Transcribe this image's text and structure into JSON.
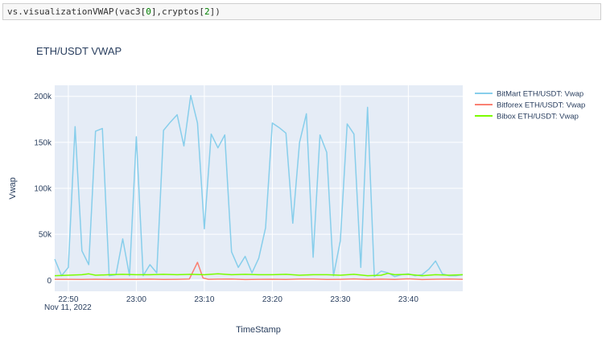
{
  "code_cell": {
    "prefix": "vs.visualizationVWAP(vac3[",
    "index1": "0",
    "middle": "],cryptos[",
    "index2": "2",
    "suffix": "])"
  },
  "chart_data": {
    "type": "line",
    "title": "ETH/USDT VWAP",
    "xlabel": "TimeStamp",
    "ylabel": "Vwap",
    "x_tick_labels": [
      "22:50",
      "23:00",
      "23:10",
      "23:20",
      "23:30",
      "23:40"
    ],
    "x_tick_minutes": [
      50,
      60,
      70,
      80,
      90,
      100
    ],
    "x_date_label": "Nov 11, 2022",
    "y_ticks": [
      0,
      50000,
      100000,
      150000,
      200000
    ],
    "y_tick_labels": [
      "0",
      "50k",
      "100k",
      "150k",
      "200k"
    ],
    "xlim_minutes": [
      48.0,
      108.0
    ],
    "ylim": [
      -12000,
      212000
    ],
    "grid": true,
    "legend_position": "right",
    "series": [
      {
        "name": "BitMart ETH/USDT: Vwap",
        "color": "#87ceeb",
        "x_minutes": [
          48.0,
          49.0,
          50.0,
          51.0,
          52.0,
          53.0,
          54.0,
          55.0,
          56.0,
          57.0,
          58.0,
          59.0,
          60.0,
          61.0,
          62.0,
          63.0,
          64.0,
          65.0,
          66.0,
          67.0,
          68.0,
          69.0,
          70.0,
          71.0,
          72.0,
          73.0,
          74.0,
          75.0,
          76.0,
          77.0,
          78.0,
          79.0,
          80.0,
          81.0,
          82.0,
          83.0,
          84.0,
          85.0,
          86.0,
          87.0,
          88.0,
          89.0,
          90.0,
          91.0,
          92.0,
          93.0,
          94.0,
          95.0,
          96.0,
          97.0,
          98.0,
          99.0,
          100.0,
          101.0,
          102.0,
          103.0,
          104.0,
          105.0,
          106.0,
          107.0,
          108.0
        ],
        "values": [
          23000,
          5000,
          14000,
          167000,
          32000,
          17000,
          162000,
          165000,
          5000,
          6000,
          45000,
          5000,
          156000,
          5000,
          17000,
          8000,
          163000,
          172000,
          180000,
          146000,
          201000,
          171000,
          56000,
          159000,
          144000,
          158000,
          31000,
          14000,
          26000,
          8000,
          24000,
          57000,
          171000,
          166000,
          160000,
          62000,
          150000,
          181000,
          25000,
          158000,
          139000,
          5000,
          43000,
          170000,
          159000,
          14000,
          188000,
          4000,
          10000,
          8000,
          4000,
          6000,
          7000,
          5000,
          6000,
          12000,
          21000,
          7000,
          5000,
          5000,
          6000
        ]
      },
      {
        "name": "Bitforex ETH/USDT: Vwap",
        "color": "#fa8072",
        "x_minutes": [
          48.0,
          50.0,
          52.0,
          54.0,
          56.0,
          58.0,
          60.0,
          62.0,
          64.0,
          66.0,
          67.8,
          69.0,
          69.8,
          70.6,
          72.0,
          74.0,
          76.0,
          78.0,
          80.0,
          82.0,
          84.0,
          86.0,
          88.0,
          90.0,
          92.0,
          94.0,
          96.0,
          98.0,
          100.0,
          102.0,
          104.0,
          106.0,
          108.0
        ],
        "values": [
          1000,
          1000,
          900,
          1100,
          900,
          1000,
          1000,
          1200,
          900,
          1000,
          1400,
          19500,
          2500,
          1000,
          1200,
          1300,
          800,
          1000,
          1100,
          900,
          1400,
          1300,
          900,
          1000,
          1500,
          900,
          1200,
          900,
          1600,
          800,
          1100,
          1300,
          1000
        ]
      },
      {
        "name": "Bibox ETH/USDT: Vwap",
        "color": "#7cfc00",
        "x_minutes": [
          48.0,
          50.0,
          52.0,
          53.0,
          54.0,
          56.0,
          58.0,
          60.0,
          62.0,
          64.0,
          66.0,
          68.0,
          70.0,
          72.0,
          74.0,
          76.0,
          78.0,
          80.0,
          82.0,
          84.0,
          86.0,
          88.0,
          90.0,
          92.0,
          94.0,
          96.0,
          97.0,
          98.0,
          100.0,
          102.0,
          104.0,
          106.0,
          108.0
        ],
        "values": [
          5000,
          5500,
          6000,
          7000,
          5500,
          6000,
          6500,
          6000,
          6000,
          6500,
          6000,
          6500,
          6000,
          7000,
          6000,
          6500,
          6000,
          6000,
          6500,
          5500,
          6000,
          6000,
          5500,
          6500,
          5000,
          5500,
          7500,
          6000,
          6500,
          5000,
          6000,
          5500,
          6000
        ]
      }
    ]
  }
}
